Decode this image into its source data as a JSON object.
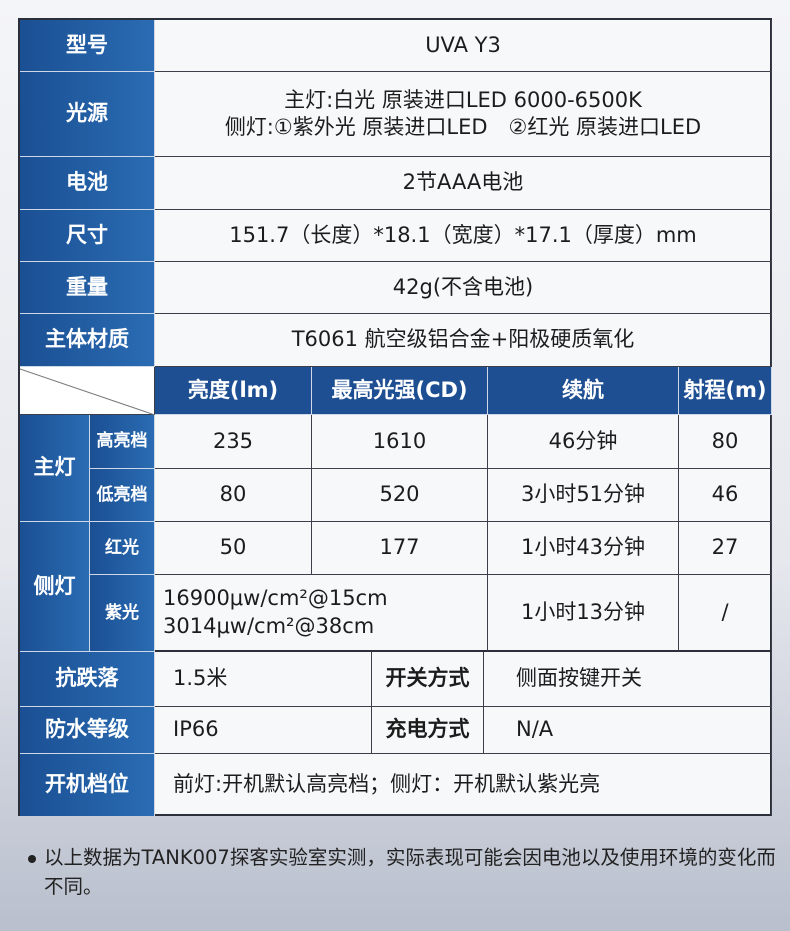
{
  "specs": {
    "model_label": "型号",
    "model": "UVA Y3",
    "source_label": "光源",
    "source_line1": "主灯:白光 原装进口LED 6000-6500K",
    "source_line2": "侧灯:①紫外光 原装进口LED　②红光 原装进口LED",
    "battery_label": "电池",
    "battery": "2节AAA电池",
    "size_label": "尺寸",
    "size": "151.7（长度）*18.1（宽度）*17.1（厚度）mm",
    "weight_label": "重量",
    "weight": "42g(不含电池)",
    "material_label": "主体材质",
    "material": "T6061 航空级铝合金+阳极硬质氧化"
  },
  "perf": {
    "headers": [
      "亮度(lm)",
      "最高光强(CD)",
      "续航",
      "射程(m)"
    ],
    "main_label": "主灯",
    "side_label": "侧灯",
    "rows": [
      {
        "mode": "高亮档",
        "lm": "235",
        "cd": "1610",
        "runtime": "46分钟",
        "range": "80"
      },
      {
        "mode": "低亮档",
        "lm": "80",
        "cd": "520",
        "runtime": "3小时51分钟",
        "range": "46"
      },
      {
        "mode": "红光",
        "lm": "50",
        "cd": "177",
        "runtime": "1小时43分钟",
        "range": "27"
      },
      {
        "mode": "紫光",
        "uv1": "16900μw/cm²@15cm",
        "uv2": "3014μw/cm²@38cm",
        "runtime": "1小时13分钟",
        "range": "/"
      }
    ]
  },
  "other": {
    "drop_label": "抗跌落",
    "drop": "1.5米",
    "switch_label": "开关方式",
    "switch": "侧面按键开关",
    "water_label": "防水等级",
    "water": "IP66",
    "charge_label": "充电方式",
    "charge": "N/A",
    "startup_label": "开机档位",
    "startup": "前灯:开机默认高亮档；侧灯：开机默认紫光亮"
  },
  "note": "以上数据为TANK007探客实验室实测，实际表现可能会因电池以及使用环境的变化而不同。"
}
